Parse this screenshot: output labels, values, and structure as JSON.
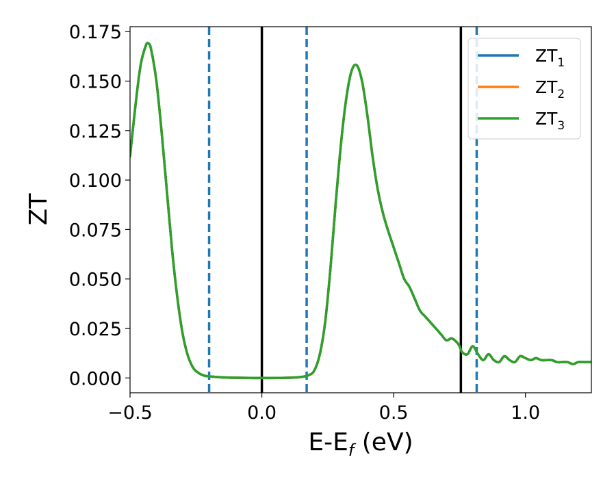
{
  "chart_data": {
    "type": "line",
    "title": "",
    "xlabel": {
      "main": "E-E",
      "sub": "f",
      "suffix": " (eV)"
    },
    "ylabel": "ZT",
    "xlim": [
      -0.5,
      1.25
    ],
    "ylim": [
      -0.0075,
      0.1775
    ],
    "xticks": [
      -0.5,
      0.0,
      0.5,
      1.0
    ],
    "xtick_labels": [
      "−0.5",
      "0.0",
      "0.5",
      "1.0"
    ],
    "yticks": [
      0.0,
      0.025,
      0.05,
      0.075,
      0.1,
      0.125,
      0.15,
      0.175
    ],
    "ytick_labels": [
      "0.000",
      "0.025",
      "0.050",
      "0.075",
      "0.100",
      "0.125",
      "0.150",
      "0.175"
    ],
    "grid": false,
    "legend_position": "top-right",
    "vlines": [
      {
        "x": 0.0,
        "color": "#000000",
        "style": "solid"
      },
      {
        "x": 0.755,
        "color": "#000000",
        "style": "solid"
      },
      {
        "x": -0.2,
        "color": "#1f77b4",
        "style": "dashed"
      },
      {
        "x": 0.17,
        "color": "#1f77b4",
        "style": "dashed"
      },
      {
        "x": 0.815,
        "color": "#1f77b4",
        "style": "dashed"
      }
    ],
    "x": [
      -0.5,
      -0.48,
      -0.46,
      -0.44,
      -0.43,
      -0.42,
      -0.4,
      -0.38,
      -0.36,
      -0.34,
      -0.32,
      -0.3,
      -0.28,
      -0.26,
      -0.24,
      -0.22,
      -0.2,
      -0.15,
      -0.1,
      -0.05,
      0.0,
      0.05,
      0.1,
      0.15,
      0.18,
      0.2,
      0.22,
      0.24,
      0.26,
      0.28,
      0.3,
      0.32,
      0.34,
      0.36,
      0.38,
      0.4,
      0.42,
      0.44,
      0.46,
      0.48,
      0.5,
      0.52,
      0.54,
      0.56,
      0.58,
      0.6,
      0.62,
      0.64,
      0.66,
      0.68,
      0.7,
      0.72,
      0.74,
      0.75,
      0.76,
      0.78,
      0.8,
      0.82,
      0.84,
      0.86,
      0.88,
      0.9,
      0.92,
      0.94,
      0.96,
      0.98,
      1.0,
      1.02,
      1.04,
      1.06,
      1.08,
      1.1,
      1.12,
      1.14,
      1.16,
      1.18,
      1.2,
      1.22,
      1.25
    ],
    "series": [
      {
        "name": "ZT",
        "name_sub": "1",
        "color": "#1f77b4",
        "values": [
          0.112,
          0.137,
          0.158,
          0.168,
          0.169,
          0.166,
          0.15,
          0.124,
          0.094,
          0.064,
          0.04,
          0.022,
          0.011,
          0.005,
          0.0025,
          0.0012,
          0.0008,
          0.0003,
          0.0001,
          0.0,
          0.0,
          0.0,
          0.0001,
          0.0005,
          0.0015,
          0.004,
          0.012,
          0.028,
          0.055,
          0.088,
          0.118,
          0.141,
          0.155,
          0.158,
          0.15,
          0.133,
          0.112,
          0.095,
          0.083,
          0.074,
          0.066,
          0.058,
          0.05,
          0.046,
          0.04,
          0.034,
          0.031,
          0.028,
          0.025,
          0.022,
          0.019,
          0.02,
          0.018,
          0.016,
          0.013,
          0.012,
          0.016,
          0.012,
          0.009,
          0.012,
          0.009,
          0.008,
          0.011,
          0.009,
          0.008,
          0.011,
          0.01,
          0.009,
          0.01,
          0.009,
          0.009,
          0.009,
          0.008,
          0.008,
          0.008,
          0.007,
          0.008,
          0.008,
          0.008
        ]
      },
      {
        "name": "ZT",
        "name_sub": "2",
        "color": "#ff7f0e",
        "values": [
          0.112,
          0.137,
          0.158,
          0.168,
          0.169,
          0.166,
          0.15,
          0.124,
          0.094,
          0.064,
          0.04,
          0.022,
          0.011,
          0.005,
          0.0025,
          0.0012,
          0.0008,
          0.0003,
          0.0001,
          0.0,
          0.0,
          0.0,
          0.0001,
          0.0005,
          0.0015,
          0.004,
          0.012,
          0.028,
          0.055,
          0.088,
          0.118,
          0.141,
          0.155,
          0.158,
          0.15,
          0.133,
          0.112,
          0.095,
          0.083,
          0.074,
          0.066,
          0.058,
          0.05,
          0.046,
          0.04,
          0.034,
          0.031,
          0.028,
          0.025,
          0.022,
          0.019,
          0.02,
          0.018,
          0.016,
          0.013,
          0.012,
          0.016,
          0.012,
          0.009,
          0.012,
          0.009,
          0.008,
          0.011,
          0.009,
          0.008,
          0.011,
          0.01,
          0.009,
          0.01,
          0.009,
          0.009,
          0.009,
          0.008,
          0.008,
          0.008,
          0.007,
          0.008,
          0.008,
          0.008
        ]
      },
      {
        "name": "ZT",
        "name_sub": "3",
        "color": "#2ca02c",
        "values": [
          0.112,
          0.137,
          0.158,
          0.168,
          0.169,
          0.166,
          0.15,
          0.124,
          0.094,
          0.064,
          0.04,
          0.022,
          0.011,
          0.005,
          0.0025,
          0.0012,
          0.0008,
          0.0003,
          0.0001,
          0.0,
          0.0,
          0.0,
          0.0001,
          0.0005,
          0.0015,
          0.004,
          0.012,
          0.028,
          0.055,
          0.088,
          0.118,
          0.141,
          0.155,
          0.158,
          0.15,
          0.133,
          0.112,
          0.095,
          0.083,
          0.074,
          0.066,
          0.058,
          0.05,
          0.046,
          0.04,
          0.034,
          0.031,
          0.028,
          0.025,
          0.022,
          0.019,
          0.02,
          0.018,
          0.016,
          0.013,
          0.012,
          0.016,
          0.012,
          0.009,
          0.012,
          0.009,
          0.008,
          0.011,
          0.009,
          0.008,
          0.011,
          0.01,
          0.009,
          0.01,
          0.009,
          0.009,
          0.009,
          0.008,
          0.008,
          0.008,
          0.007,
          0.008,
          0.008,
          0.008
        ]
      }
    ]
  }
}
